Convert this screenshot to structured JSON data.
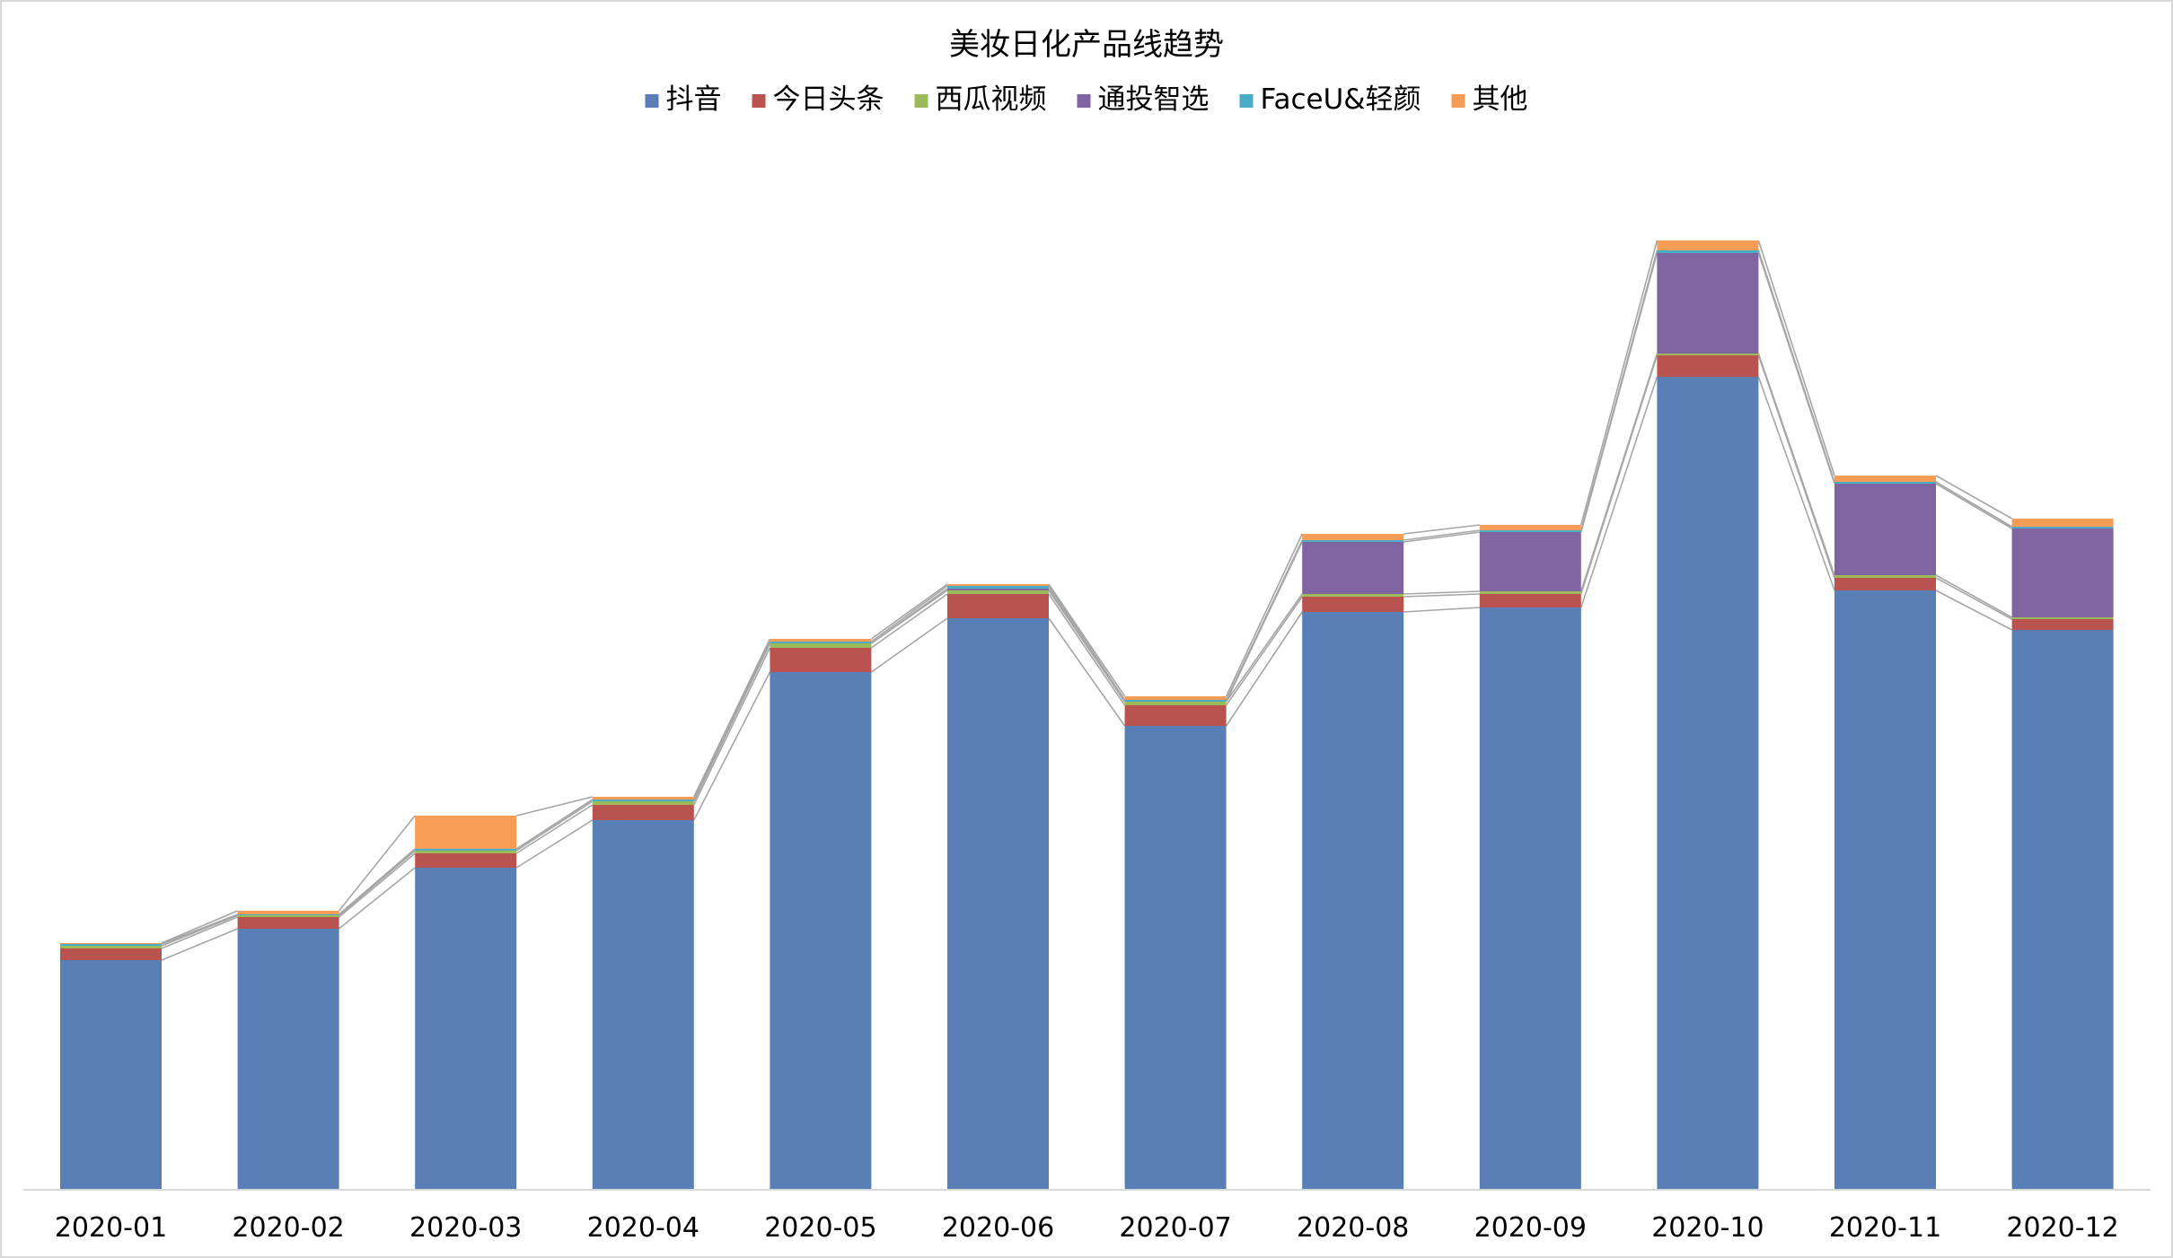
{
  "chart_data": {
    "type": "bar",
    "stacked": true,
    "title": "美妆日化产品线趋势",
    "categories": [
      "2020-01",
      "2020-02",
      "2020-03",
      "2020-04",
      "2020-05",
      "2020-06",
      "2020-07",
      "2020-08",
      "2020-09",
      "2020-10",
      "2020-11",
      "2020-12"
    ],
    "series": [
      {
        "name": "抖音",
        "color": "#5A7FB6",
        "values": [
          255,
          290,
          358,
          411,
          576,
          636,
          516,
          643,
          648,
          905,
          667,
          623
        ]
      },
      {
        "name": "今日头条",
        "color": "#B9534F",
        "values": [
          13,
          13,
          16,
          17,
          27,
          27,
          23,
          17,
          15,
          24,
          14,
          12
        ]
      },
      {
        "name": "西瓜视频",
        "color": "#9BBB59",
        "values": [
          3,
          2,
          3,
          4,
          5,
          4,
          4,
          3,
          3,
          2,
          3,
          2
        ]
      },
      {
        "name": "通投智选",
        "color": "#8064A2",
        "values": [
          0,
          0,
          0,
          0,
          0,
          2,
          0,
          58,
          66,
          112,
          102,
          99
        ]
      },
      {
        "name": "FaceU&轻颜",
        "color": "#4BACC6",
        "values": [
          2,
          1,
          2,
          2,
          2,
          3,
          2,
          2,
          2,
          3,
          2,
          2
        ]
      },
      {
        "name": "其他",
        "color": "#F59D56",
        "values": [
          1,
          4,
          37,
          3,
          3,
          2,
          4,
          7,
          6,
          11,
          7,
          9
        ]
      }
    ],
    "legend_position": "top",
    "grid": false,
    "y_axis_visible": false,
    "connector_lines": true
  }
}
